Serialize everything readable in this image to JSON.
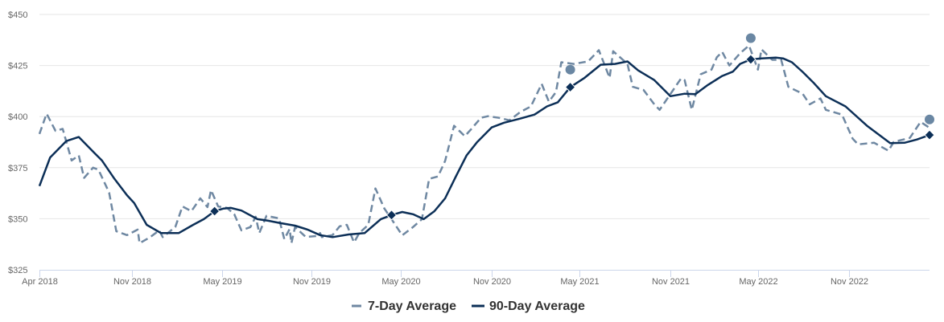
{
  "chart_data": {
    "type": "line",
    "title": "",
    "xlabel": "",
    "ylabel": "",
    "xlim": [
      2018.31,
      2023.29
    ],
    "ylim": [
      325,
      450
    ],
    "grid": true,
    "legend_placement": "bottom-center",
    "yticks": [
      {
        "value": 325,
        "label": "$325"
      },
      {
        "value": 350,
        "label": "$350"
      },
      {
        "value": 375,
        "label": "$375"
      },
      {
        "value": 400,
        "label": "$400"
      },
      {
        "value": 425,
        "label": "$425"
      },
      {
        "value": 450,
        "label": "$450"
      }
    ],
    "xticks": [
      {
        "value": 2018.31,
        "label": "Apr 2018"
      },
      {
        "value": 2018.83,
        "label": "Nov 2018"
      },
      {
        "value": 2019.33,
        "label": "May 2019"
      },
      {
        "value": 2019.83,
        "label": "Nov 2019"
      },
      {
        "value": 2020.33,
        "label": "May 2020"
      },
      {
        "value": 2020.84,
        "label": "Nov 2020"
      },
      {
        "value": 2021.33,
        "label": "May 2021"
      },
      {
        "value": 2021.84,
        "label": "Nov 2021"
      },
      {
        "value": 2022.33,
        "label": "May 2022"
      },
      {
        "value": 2022.84,
        "label": "Nov 2022"
      }
    ],
    "series": [
      {
        "name": "7-Day Average",
        "color": "#6f88a2",
        "style": "dashed",
        "x": [
          2018.31,
          2018.35,
          2018.4,
          2018.44,
          2018.49,
          2018.53,
          2018.56,
          2018.61,
          2018.64,
          2018.7,
          2018.74,
          2018.8,
          2018.86,
          2018.87,
          2018.93,
          2018.98,
          2019.0,
          2019.07,
          2019.11,
          2019.16,
          2019.21,
          2019.25,
          2019.27,
          2019.31,
          2019.36,
          2019.4,
          2019.44,
          2019.49,
          2019.52,
          2019.54,
          2019.58,
          2019.65,
          2019.68,
          2019.71,
          2019.72,
          2019.74,
          2019.8,
          2019.86,
          2019.88,
          2019.89,
          2019.95,
          2019.99,
          2020.03,
          2020.07,
          2020.1,
          2020.15,
          2020.19,
          2020.24,
          2020.28,
          2020.34,
          2020.4,
          2020.45,
          2020.49,
          2020.54,
          2020.58,
          2020.63,
          2020.69,
          2020.73,
          2020.78,
          2020.82,
          2020.88,
          2020.94,
          2021.0,
          2021.06,
          2021.12,
          2021.16,
          2021.2,
          2021.23,
          2021.3,
          2021.38,
          2021.44,
          2021.5,
          2021.52,
          2021.6,
          2021.63,
          2021.69,
          2021.75,
          2021.78,
          2021.84,
          2021.9,
          2021.92,
          2021.96,
          2022.01,
          2022.07,
          2022.1,
          2022.13,
          2022.17,
          2022.23,
          2022.28,
          2022.33,
          2022.35,
          2022.41,
          2022.46,
          2022.5,
          2022.58,
          2022.62,
          2022.68,
          2022.71,
          2022.8,
          2022.86,
          2022.89,
          2022.98,
          2023.06,
          2023.09,
          2023.18,
          2023.24,
          2023.29
        ],
        "values": [
          391.5,
          401.4,
          393,
          394,
          378.5,
          381,
          370,
          375,
          374,
          362.8,
          343.9,
          342,
          344.7,
          338,
          341,
          344.3,
          341,
          345.9,
          356,
          353.7,
          360,
          355.7,
          364,
          356,
          355.3,
          352.2,
          344.3,
          345.9,
          351,
          343,
          351.4,
          350.2,
          340,
          345,
          338,
          345.9,
          341.1,
          341.5,
          343,
          341,
          342,
          346.3,
          347,
          338.4,
          343,
          347,
          364.8,
          355,
          349.8,
          341.9,
          345.9,
          349.8,
          369.5,
          370.7,
          378.3,
          395.5,
          390.4,
          394.3,
          399.4,
          400.2,
          399.4,
          398.2,
          402.2,
          405,
          416,
          407.3,
          412,
          426.6,
          425.8,
          427,
          432.5,
          419,
          432,
          425.8,
          414.6,
          413,
          406,
          403.3,
          411,
          418.7,
          417.9,
          403.3,
          420.7,
          423,
          429,
          431.7,
          425,
          431,
          434.8,
          423,
          432.9,
          427.8,
          427.8,
          414.6,
          411.2,
          406,
          408.9,
          403.3,
          401,
          389.2,
          386.4,
          387.2,
          383.3,
          387.6,
          389.6,
          397.4,
          394.5
        ]
      },
      {
        "name": "90-Day Average",
        "color": "#0c2f57",
        "style": "solid",
        "x": [
          2018.31,
          2018.37,
          2018.46,
          2018.53,
          2018.62,
          2018.66,
          2018.73,
          2018.8,
          2018.84,
          2018.91,
          2018.99,
          2019.09,
          2019.17,
          2019.23,
          2019.29,
          2019.34,
          2019.38,
          2019.44,
          2019.53,
          2019.59,
          2019.65,
          2019.74,
          2019.81,
          2019.88,
          2019.95,
          2020.04,
          2020.13,
          2020.22,
          2020.28,
          2020.34,
          2020.4,
          2020.46,
          2020.52,
          2020.58,
          2020.64,
          2020.7,
          2020.76,
          2020.84,
          2020.91,
          2021.0,
          2021.08,
          2021.15,
          2021.21,
          2021.28,
          2021.36,
          2021.45,
          2021.53,
          2021.6,
          2021.66,
          2021.75,
          2021.84,
          2021.92,
          2021.98,
          2022.05,
          2022.13,
          2022.19,
          2022.23,
          2022.29,
          2022.35,
          2022.43,
          2022.47,
          2022.52,
          2022.58,
          2022.64,
          2022.71,
          2022.82,
          2022.94,
          2023.07,
          2023.15,
          2023.22,
          2023.29
        ],
        "values": [
          366,
          380,
          388,
          390,
          382,
          378.5,
          369.5,
          361.5,
          357.7,
          347,
          343,
          343,
          347,
          349.8,
          353.7,
          355,
          355.3,
          354,
          349.8,
          349,
          348,
          346.6,
          344.7,
          342,
          341,
          342.3,
          343,
          349.8,
          351.8,
          353.3,
          352.2,
          349.8,
          353.7,
          360,
          370.7,
          381,
          387.6,
          394.7,
          397,
          399,
          401,
          405,
          407,
          414.4,
          419,
          425.4,
          425.8,
          427,
          422.6,
          417.9,
          410,
          411.2,
          411,
          415.5,
          419.9,
          422,
          425.8,
          428,
          428.5,
          428.9,
          428.5,
          426.6,
          421.9,
          416.7,
          410,
          405,
          395.5,
          387,
          387.2,
          388.8,
          391
        ]
      }
    ],
    "markers": {
      "diamonds_90day": [
        [
          2019.29,
          353.7
        ],
        [
          2020.28,
          351.8
        ],
        [
          2021.28,
          414.4
        ],
        [
          2022.29,
          428
        ],
        [
          2023.29,
          391
        ]
      ],
      "circles_7day": [
        [
          2021.28,
          423
        ],
        [
          2022.29,
          438.4
        ],
        [
          2023.29,
          398.6
        ]
      ]
    },
    "legend": [
      {
        "label": "7-Day Average",
        "series": 0
      },
      {
        "label": "90-Day Average",
        "series": 1
      }
    ]
  }
}
